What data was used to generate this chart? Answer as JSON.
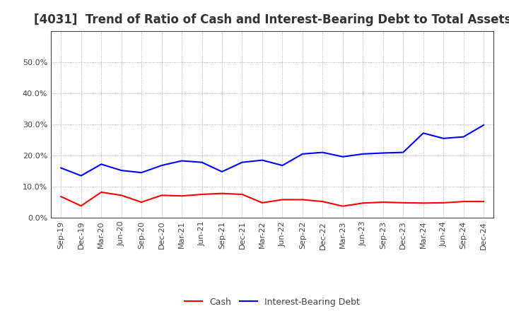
{
  "title": "[4031]  Trend of Ratio of Cash and Interest-Bearing Debt to Total Assets",
  "x_labels": [
    "Sep-19",
    "Dec-19",
    "Mar-20",
    "Jun-20",
    "Sep-20",
    "Dec-20",
    "Mar-21",
    "Jun-21",
    "Sep-21",
    "Dec-21",
    "Mar-22",
    "Jun-22",
    "Sep-22",
    "Dec-22",
    "Mar-23",
    "Jun-23",
    "Sep-23",
    "Dec-23",
    "Mar-24",
    "Jun-24",
    "Sep-24",
    "Dec-24"
  ],
  "cash": [
    0.068,
    0.038,
    0.082,
    0.072,
    0.05,
    0.072,
    0.07,
    0.075,
    0.078,
    0.075,
    0.048,
    0.058,
    0.058,
    0.052,
    0.037,
    0.047,
    0.05,
    0.048,
    0.047,
    0.048,
    0.052,
    0.052
  ],
  "interest_bearing_debt": [
    0.16,
    0.135,
    0.172,
    0.152,
    0.145,
    0.168,
    0.183,
    0.178,
    0.148,
    0.178,
    0.185,
    0.168,
    0.205,
    0.21,
    0.196,
    0.205,
    0.208,
    0.21,
    0.272,
    0.255,
    0.26,
    0.298
  ],
  "cash_color": "#ff0000",
  "debt_color": "#0000ff",
  "background_color": "#ffffff",
  "grid_color": "#999999",
  "ylim": [
    0.0,
    0.6
  ],
  "yticks": [
    0.0,
    0.1,
    0.2,
    0.3,
    0.4,
    0.5
  ],
  "legend_cash": "Cash",
  "legend_debt": "Interest-Bearing Debt",
  "title_fontsize": 12,
  "tick_fontsize": 8,
  "legend_fontsize": 9
}
